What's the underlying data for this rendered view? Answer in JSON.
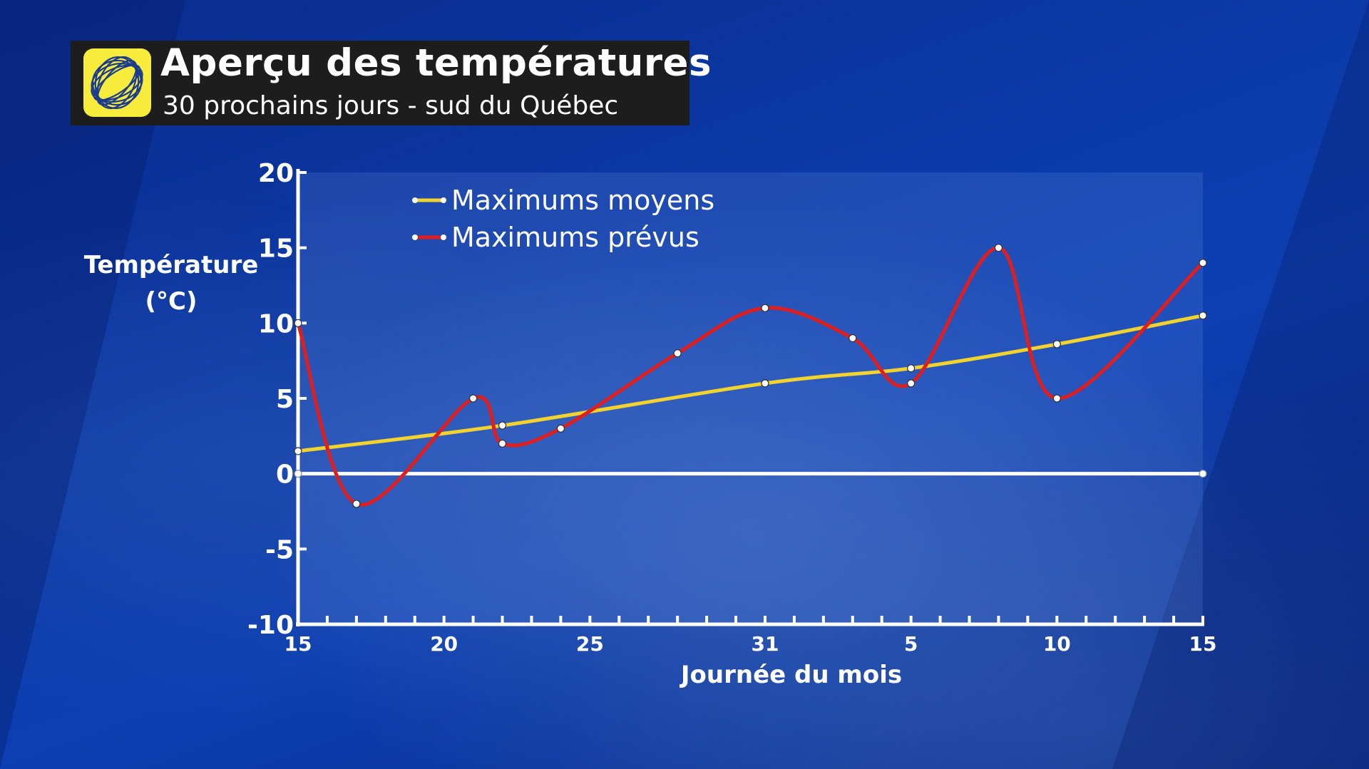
{
  "header": {
    "title": "Aperçu des températures",
    "subtitle": "30 prochains jours - sud du Québec"
  },
  "logo": {
    "icon": "weather-network-swirl-icon",
    "color": "#f7ec3c"
  },
  "colors": {
    "background": "#0b3aa8",
    "average_line": "#f2d22c",
    "forecast_line": "#e01e1e",
    "axis": "#ffffff",
    "title_box": "#1d1d1d"
  },
  "chart_data": {
    "type": "line",
    "title": "Aperçu des températures",
    "subtitle": "30 prochains jours - sud du Québec",
    "xlabel": "Journée du mois",
    "ylabel": [
      "Température",
      "(°C)"
    ],
    "xlim": [
      0,
      31
    ],
    "ylim": [
      -10,
      20
    ],
    "y_ticks": [
      -10,
      -5,
      0,
      5,
      10,
      15,
      20
    ],
    "x_tick_labels": [
      {
        "x": 0,
        "label": "15"
      },
      {
        "x": 5,
        "label": "20"
      },
      {
        "x": 10,
        "label": "25"
      },
      {
        "x": 16,
        "label": "31"
      },
      {
        "x": 21,
        "label": "5"
      },
      {
        "x": 26,
        "label": "10"
      },
      {
        "x": 31,
        "label": "15"
      }
    ],
    "minor_ticks_every": 1,
    "grid": false,
    "legend_position": "top-left",
    "series": [
      {
        "name": "Maximums moyens",
        "color": "#f2d22c",
        "points": [
          [
            0,
            1.5
          ],
          [
            7,
            3.2
          ],
          [
            16,
            6
          ],
          [
            21,
            7
          ],
          [
            26,
            8.6
          ],
          [
            31,
            10.5
          ]
        ]
      },
      {
        "name": "Maximums prévus",
        "color": "#e01e1e",
        "points": [
          [
            0,
            10
          ],
          [
            2,
            -2
          ],
          [
            6,
            5
          ],
          [
            7,
            2
          ],
          [
            9,
            3
          ],
          [
            13,
            8
          ],
          [
            16,
            11
          ],
          [
            19,
            9
          ],
          [
            21,
            6
          ],
          [
            24,
            15
          ],
          [
            26,
            5
          ],
          [
            31,
            14
          ]
        ]
      },
      {
        "name": "",
        "color": "#ffffff",
        "points": [
          [
            0,
            0
          ],
          [
            31,
            0
          ]
        ],
        "reference": true
      }
    ]
  }
}
